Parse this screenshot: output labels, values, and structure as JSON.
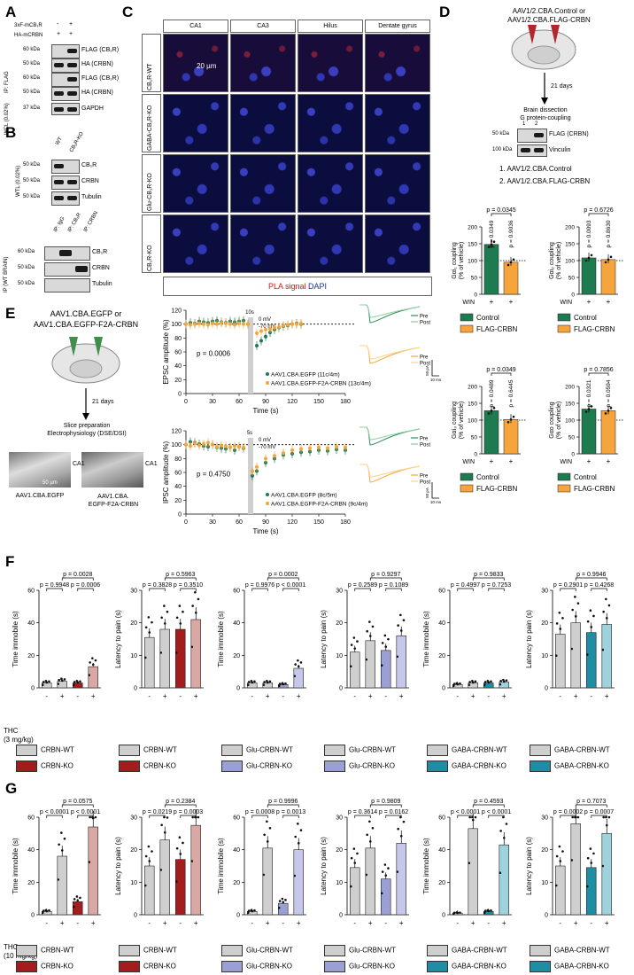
{
  "letters": {
    "A": "A",
    "B": "B",
    "C": "C",
    "D": "D",
    "E": "E",
    "F": "F",
    "G": "G"
  },
  "colors": {
    "green": "#1e7a4f",
    "orange": "#f6a53c",
    "crbn_wt": "#cfcfcf",
    "crbn_ko": "#a51c1c",
    "ko_light": "#d9a8a4",
    "glu_ko": "#9aa0d6",
    "glu_ko_light": "#c5c8ea",
    "gaba_ko": "#1d8ea3",
    "gaba_ko_light": "#9ed3de",
    "egfp": "#2e8b57",
    "crbn_trace": "#f6b73c"
  },
  "panelA": {
    "row1": "3xF-mCB₁R",
    "row2": "HA-mCRBN",
    "signs1": [
      "-",
      "+"
    ],
    "signs2": [
      "+",
      "+"
    ],
    "ip": "IP: FLAG",
    "wcl": "WCL (0.02%)",
    "kda": [
      "60 kDa",
      "50 kDa",
      "60 kDa",
      "50 kDa",
      "37 kDa"
    ],
    "bands": [
      "FLAG (CB₁R)",
      "HA (CRBN)",
      "FLAG (CB₁R)",
      "HA (CRBN)",
      "GAPDH"
    ]
  },
  "panelB": {
    "cols": [
      "WT",
      "CB₁R-KO"
    ],
    "wtl": "WTL (0.02%)",
    "kda": [
      "50 kDa",
      "50 kDa",
      "50 kDa"
    ],
    "bands": [
      "CB₁R",
      "CRBN",
      "Tubulin"
    ],
    "ipcols": [
      "IP: IgG",
      "IP: CB₁R",
      "IP: CRBN"
    ],
    "ipside": "IP (WT BRAIN)",
    "ipkda": [
      "60 kDa",
      "50 kDa",
      "50 kDa"
    ],
    "ipbands": [
      "CB₁R",
      "CRBN",
      "Tubulin"
    ]
  },
  "panelC": {
    "cols": [
      "CA1",
      "CA3",
      "Hilus",
      "Dentate gyrus"
    ],
    "rows": [
      "CB₁R-WT",
      "GABA-CB₁R-KO",
      "Glu-CB₁R-KO",
      "CB₁R-KO"
    ],
    "scale": "20 µm",
    "pla": "PLA signal",
    "dapi": "DAPI"
  },
  "panelD": {
    "vector": "AAV1/2.CBA.Control or\nAAV1/2.CBA.FLAG-CRBN",
    "days": "21 days",
    "step": "Brain dissection\nG protein-coupling",
    "lanes": [
      "1",
      "2"
    ],
    "kda": [
      "50 kDa",
      "100 kDa"
    ],
    "bands": [
      "FLAG (CRBN)",
      "Vinculin"
    ],
    "list": [
      "1. AAV1/2.CBA.Control",
      "2. AAV1/2.CBA.FLAG-CRBN"
    ],
    "plots": [
      {
        "ylabel": "Gαi₁ coupling\n(% of vehicle)",
        "top": "p = 0.0345",
        "p1": "p = 0.0349",
        "p2": "p = 0.9036",
        "values": [
          148,
          95
        ]
      },
      {
        "ylabel": "Gαi₂ coupling\n(% of vehicle)",
        "top": "p = 0.6726",
        "p1": "p = 0.0093",
        "p2": "p = 0.8630",
        "values": [
          108,
          103
        ]
      },
      {
        "ylabel": "Gαi₃ coupling\n(% of vehicle)",
        "top": "p = 0.0349",
        "p1": "p = 0.0489",
        "p2": "p = 0.6445",
        "values": [
          128,
          102
        ]
      },
      {
        "ylabel": "Gαo coupling\n(% of vehicle)",
        "top": "p = 0.7856",
        "p1": "p = 0.0321",
        "p2": "p = 0.0594",
        "values": [
          133,
          128
        ]
      }
    ],
    "ticks": [
      "0",
      "50",
      "100",
      "150",
      "200"
    ],
    "win": "WIN",
    "plus": "+",
    "legend": [
      "Control",
      "FLAG-CRBN"
    ]
  },
  "panelE": {
    "vector": "AAV1.CBA.EGFP or\nAAV1.CBA.EGFP-F2A-CRBN",
    "days": "21 days",
    "step": "Slice preparation\nElectrophysiology (DSE/DSI)",
    "img1": "AAV1.CBA.EGFP",
    "img2": "AAV1.CBA.\nEGFP-F2A-CRBN",
    "ca1": "CA1",
    "scale": "50 µm",
    "epsc": {
      "ylabel": "EPSC amplitude (%)",
      "p": "p = 0.0006",
      "stim": "10s",
      "mv1": "0 mV",
      "mv2": "-70 mV",
      "leg1": "AAV1.CBA.EGFP (11c/4m)",
      "leg2": "AAV1.CBA.EGFP-F2A-CRBN (13c/4m)",
      "yticks": [
        "0",
        "20",
        "40",
        "60",
        "80",
        "100",
        "120"
      ],
      "xticks": [
        "0",
        "30",
        "60",
        "90",
        "120",
        "150",
        "180"
      ],
      "x": [
        0,
        5,
        10,
        15,
        20,
        25,
        30,
        35,
        40,
        45,
        50,
        55,
        60,
        65,
        70,
        80,
        85,
        90,
        95,
        100,
        105,
        110,
        115,
        120,
        125,
        130
      ],
      "egfp": [
        100,
        102,
        101,
        104,
        103,
        102,
        104,
        105,
        103,
        102,
        104,
        103,
        104,
        105,
        100,
        69,
        76,
        82,
        88,
        92,
        95,
        97,
        98,
        100,
        101,
        100
      ],
      "crbn": [
        100,
        99,
        100,
        101,
        100,
        99,
        101,
        100,
        102,
        101,
        100,
        99,
        101,
        100,
        100,
        87,
        90,
        92,
        93,
        95,
        96,
        98,
        99,
        100,
        100,
        101
      ]
    },
    "ipsc": {
      "ylabel": "IPSC amplitude (%)",
      "p": "p = 0.4750",
      "stim": "5s",
      "mv1": "0 mV",
      "mv2": "-70 mV",
      "leg1": "AAV1.CBA.EGFP (8c/5m)",
      "leg2": "AAV1.CBA.EGFP-F2A-CRBN (9c/4m)",
      "yticks": [
        "0",
        "20",
        "40",
        "60",
        "80",
        "100",
        "120"
      ],
      "xticks": [
        "0",
        "30",
        "60",
        "90",
        "120",
        "150",
        "180"
      ],
      "x": [
        0,
        5,
        10,
        15,
        20,
        25,
        30,
        35,
        40,
        45,
        50,
        55,
        60,
        65,
        75,
        80,
        90,
        100,
        110,
        120,
        130,
        140,
        150,
        160,
        170,
        180
      ],
      "egfp": [
        100,
        104,
        103,
        101,
        98,
        97,
        100,
        96,
        95,
        94,
        96,
        92,
        97,
        95,
        55,
        62,
        74,
        80,
        85,
        87,
        89,
        90,
        92,
        91,
        93,
        92
      ],
      "crbn": [
        100,
        98,
        102,
        99,
        101,
        103,
        100,
        97,
        99,
        98,
        96,
        98,
        97,
        96,
        62,
        68,
        80,
        84,
        88,
        92,
        94,
        95,
        96,
        95,
        97,
        96
      ]
    },
    "xlabel": "Time (s)",
    "pre": "Pre",
    "post": "Post",
    "sb1": "50 pA",
    "sb2": "10 ms",
    "sb3": "50 pA",
    "sb4": "10 ms"
  },
  "panelF": {
    "thc": "THC\n(3 mg/kg)",
    "signs": [
      "-",
      "+",
      "-",
      "+"
    ],
    "plots": [
      {
        "ylabel": "Time immobile (s)",
        "ymax": 60,
        "ticks": [
          "0",
          "20",
          "40",
          "60"
        ],
        "top": "p = 0.0028",
        "p1": "p = 0.9948",
        "p2": "p = 0.0006",
        "values": [
          3,
          4,
          3,
          13
        ]
      },
      {
        "ylabel": "Latency to pain (s)",
        "ymax": 30,
        "ticks": [
          "0",
          "10",
          "20",
          "30"
        ],
        "top": "p = 0.5963",
        "p1": "p = 0.3828",
        "p2": "p = 0.3510",
        "values": [
          15.5,
          18,
          18,
          21
        ]
      },
      {
        "ylabel": "Time immobile (s)",
        "ymax": 60,
        "ticks": [
          "0",
          "20",
          "40",
          "60"
        ],
        "top": "p = 0.0002",
        "p1": "p = 0.9976",
        "p2": "p < 0.0001",
        "values": [
          3,
          3,
          2,
          12
        ]
      },
      {
        "ylabel": "Latency to pain (s)",
        "ymax": 30,
        "ticks": [
          "0",
          "10",
          "20",
          "30"
        ],
        "top": "p = 0.9297",
        "p1": "p = 0.2589",
        "p2": "p = 0.1089",
        "values": [
          11,
          14.5,
          11.5,
          16
        ]
      },
      {
        "ylabel": "Time immobile (s)",
        "ymax": 60,
        "ticks": [
          "0",
          "20",
          "40",
          "60"
        ],
        "top": "p = 0.9833",
        "p1": "p = 0.4997",
        "p2": "p = 0.7253",
        "values": [
          2,
          3,
          3,
          3.5
        ]
      },
      {
        "ylabel": "Latency to pain (s)",
        "ymax": 30,
        "ticks": [
          "0",
          "10",
          "20",
          "30"
        ],
        "top": "p = 0.9946",
        "p1": "p = 0.2901",
        "p2": "p = 0.4268",
        "values": [
          16.5,
          20,
          17,
          19.5
        ]
      }
    ],
    "legends": [
      [
        "CRBN-WT",
        "CRBN-KO"
      ],
      [
        "CRBN-WT",
        "CRBN-KO"
      ],
      [
        "Glu-CRBN-WT",
        "Glu-CRBN-KO"
      ],
      [
        "Glu-CRBN-WT",
        "Glu-CRBN-KO"
      ],
      [
        "GABA-CRBN-WT",
        "GABA-CRBN-KO"
      ],
      [
        "GABA-CRBN-WT",
        "GABA-CRBN-KO"
      ]
    ]
  },
  "panelG": {
    "thc": "THC\n(10 mg/kg)",
    "signs": [
      "-",
      "+",
      "-",
      "+"
    ],
    "plots": [
      {
        "ylabel": "Time immobile (s)",
        "ymax": 60,
        "ticks": [
          "0",
          "20",
          "40",
          "60"
        ],
        "top": "p = 0.0575",
        "p1": "p < 0.0001",
        "p2": "p < 0.0001",
        "values": [
          2,
          36,
          8,
          54
        ]
      },
      {
        "ylabel": "Latency to pain (s)",
        "ymax": 30,
        "ticks": [
          "0",
          "10",
          "20",
          "30"
        ],
        "top": "p = 0.2384",
        "p1": "p = 0.0219",
        "p2": "p = 0.0003",
        "values": [
          15,
          23,
          17,
          27.5
        ]
      },
      {
        "ylabel": "Time immobile (s)",
        "ymax": 60,
        "ticks": [
          "0",
          "20",
          "40",
          "60"
        ],
        "top": "p = 0.9996",
        "p1": "p = 0.0008",
        "p2": "p = 0.0013",
        "values": [
          2,
          41,
          7,
          40
        ]
      },
      {
        "ylabel": "Latency to pain (s)",
        "ymax": 30,
        "ticks": [
          "0",
          "10",
          "20",
          "30"
        ],
        "top": "p = 0.9809",
        "p1": "p = 0.3614",
        "p2": "p = 0.0162",
        "values": [
          14.5,
          20.5,
          11,
          22
        ]
      },
      {
        "ylabel": "Time immobile (s)",
        "ymax": 60,
        "ticks": [
          "0",
          "20",
          "40",
          "60"
        ],
        "top": "p = 0.4593",
        "p1": "p < 0.0001",
        "p2": "p < 0.0001",
        "values": [
          1,
          53,
          2,
          43
        ]
      },
      {
        "ylabel": "Latency to pain (s)",
        "ymax": 30,
        "ticks": [
          "0",
          "10",
          "20",
          "30"
        ],
        "top": "p = 0.7073",
        "p1": "p = 0.0002",
        "p2": "p = 0.0007",
        "values": [
          15,
          28,
          14.5,
          25
        ]
      }
    ],
    "legends": [
      [
        "CRBN-WT",
        "CRBN-KO"
      ],
      [
        "CRBN-WT",
        "CRBN-KO"
      ],
      [
        "Glu-CRBN-WT",
        "Glu-CRBN-KO"
      ],
      [
        "Glu-CRBN-WT",
        "Glu-CRBN-KO"
      ],
      [
        "GABA-CRBN-WT",
        "GABA-CRBN-KO"
      ],
      [
        "GABA-CRBN-WT",
        "GABA-CRBN-KO"
      ]
    ]
  },
  "chart_data": [
    {
      "type": "bar",
      "categories": [
        "WIN Control",
        "WIN FLAG-CRBN"
      ],
      "values": [
        148,
        95
      ],
      "ylabel": "Gαi₁ coupling (% of vehicle)",
      "ylim": [
        0,
        200
      ]
    },
    {
      "type": "bar",
      "categories": [
        "WIN Control",
        "WIN FLAG-CRBN"
      ],
      "values": [
        108,
        103
      ],
      "ylabel": "Gαi₂ coupling (% of vehicle)",
      "ylim": [
        0,
        200
      ]
    },
    {
      "type": "bar",
      "categories": [
        "WIN Control",
        "WIN FLAG-CRBN"
      ],
      "values": [
        128,
        102
      ],
      "ylabel": "Gαi₃ coupling (% of vehicle)",
      "ylim": [
        0,
        200
      ]
    },
    {
      "type": "bar",
      "categories": [
        "WIN Control",
        "WIN FLAG-CRBN"
      ],
      "values": [
        133,
        128
      ],
      "ylabel": "Gαo coupling (% of vehicle)",
      "ylim": [
        0,
        200
      ]
    },
    {
      "type": "line",
      "xlabel": "Time (s)",
      "ylabel": "EPSC amplitude (%)",
      "ylim": [
        0,
        120
      ],
      "series": [
        {
          "name": "AAV1.CBA.EGFP (11c/4m)"
        },
        {
          "name": "AAV1.CBA.EGFP-F2A-CRBN (13c/4m)"
        }
      ]
    },
    {
      "type": "line",
      "xlabel": "Time (s)",
      "ylabel": "IPSC amplitude (%)",
      "ylim": [
        0,
        120
      ],
      "series": [
        {
          "name": "AAV1.CBA.EGFP (8c/5m)"
        },
        {
          "name": "AAV1.CBA.EGFP-F2A-CRBN (9c/4m)"
        }
      ]
    },
    {
      "type": "bar",
      "categories": [
        "CRBN-WT -",
        "CRBN-WT +",
        "CRBN-KO -",
        "CRBN-KO +"
      ],
      "values": [
        3,
        4,
        3,
        13
      ],
      "ylabel": "Time immobile (s)",
      "ylim": [
        0,
        60
      ]
    },
    {
      "type": "bar",
      "categories": [
        "CRBN-WT -",
        "CRBN-WT +",
        "CRBN-KO -",
        "CRBN-KO +"
      ],
      "values": [
        2,
        36,
        8,
        54
      ],
      "ylabel": "Time immobile (s)",
      "ylim": [
        0,
        60
      ]
    }
  ]
}
